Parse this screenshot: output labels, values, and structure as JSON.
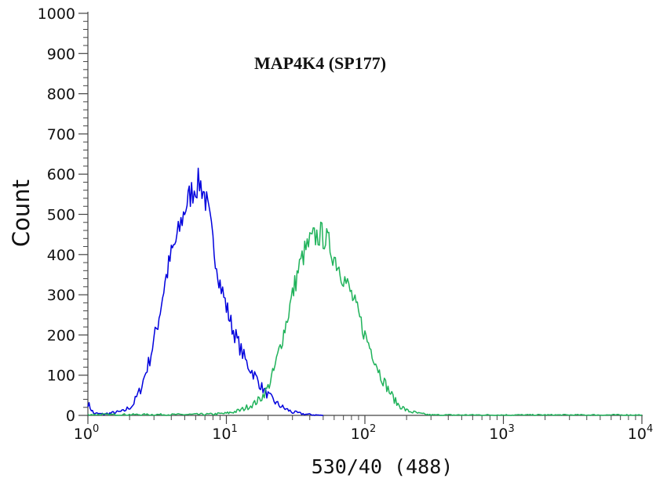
{
  "chart_data": {
    "type": "line",
    "title": "MAP4K4 (SP177)",
    "xlabel": "530/40 (488)",
    "ylabel": "Count",
    "x_scale": "log",
    "xlim": [
      1,
      10000
    ],
    "ylim": [
      0,
      1000
    ],
    "x_ticks": [
      {
        "value": 1,
        "base": "10",
        "exp": "0"
      },
      {
        "value": 10,
        "base": "10",
        "exp": "1"
      },
      {
        "value": 100,
        "base": "10",
        "exp": "2"
      },
      {
        "value": 1000,
        "base": "10",
        "exp": "3"
      },
      {
        "value": 10000,
        "base": "10",
        "exp": "4"
      }
    ],
    "y_ticks": [
      0,
      100,
      200,
      300,
      400,
      500,
      600,
      700,
      800,
      900,
      1000
    ],
    "series": [
      {
        "color": "#0000dd",
        "x": [
          1.0,
          1.1,
          1.3,
          1.5,
          1.8,
          2.1,
          2.4,
          2.8,
          3.2,
          3.6,
          4.0,
          4.4,
          4.8,
          5.2,
          5.6,
          6.0,
          6.4,
          6.8,
          7.2,
          7.6,
          8.0,
          8.5,
          9.0,
          10.0,
          11.0,
          12.5,
          14.0,
          16.0,
          18.0,
          20.0,
          23.0,
          26.0,
          30.0,
          35.0,
          40.0,
          50.0
        ],
        "y": [
          30,
          5,
          3,
          6,
          10,
          25,
          65,
          140,
          230,
          330,
          400,
          440,
          490,
          530,
          555,
          570,
          580,
          560,
          525,
          480,
          430,
          380,
          330,
          270,
          220,
          170,
          130,
          100,
          70,
          50,
          30,
          18,
          8,
          4,
          2,
          0
        ]
      },
      {
        "color": "#1fb25a",
        "x": [
          1.0,
          5.0,
          8.0,
          10.0,
          11.0,
          12.5,
          14.0,
          16.0,
          18.0,
          20.0,
          22.0,
          24.0,
          27.0,
          30.0,
          33.0,
          36.0,
          40.0,
          44.0,
          48.0,
          52.0,
          56.0,
          60.0,
          65.0,
          70.0,
          80.0,
          90.0,
          100.0,
          115.0,
          130.0,
          150.0,
          170.0,
          200.0,
          250.0,
          300.0,
          10000.0
        ],
        "y": [
          2,
          2,
          3,
          5,
          8,
          12,
          20,
          30,
          45,
          70,
          110,
          160,
          230,
          300,
          360,
          400,
          430,
          445,
          450,
          440,
          420,
          395,
          370,
          345,
          300,
          250,
          200,
          150,
          100,
          60,
          30,
          12,
          4,
          1,
          1
        ]
      }
    ]
  }
}
